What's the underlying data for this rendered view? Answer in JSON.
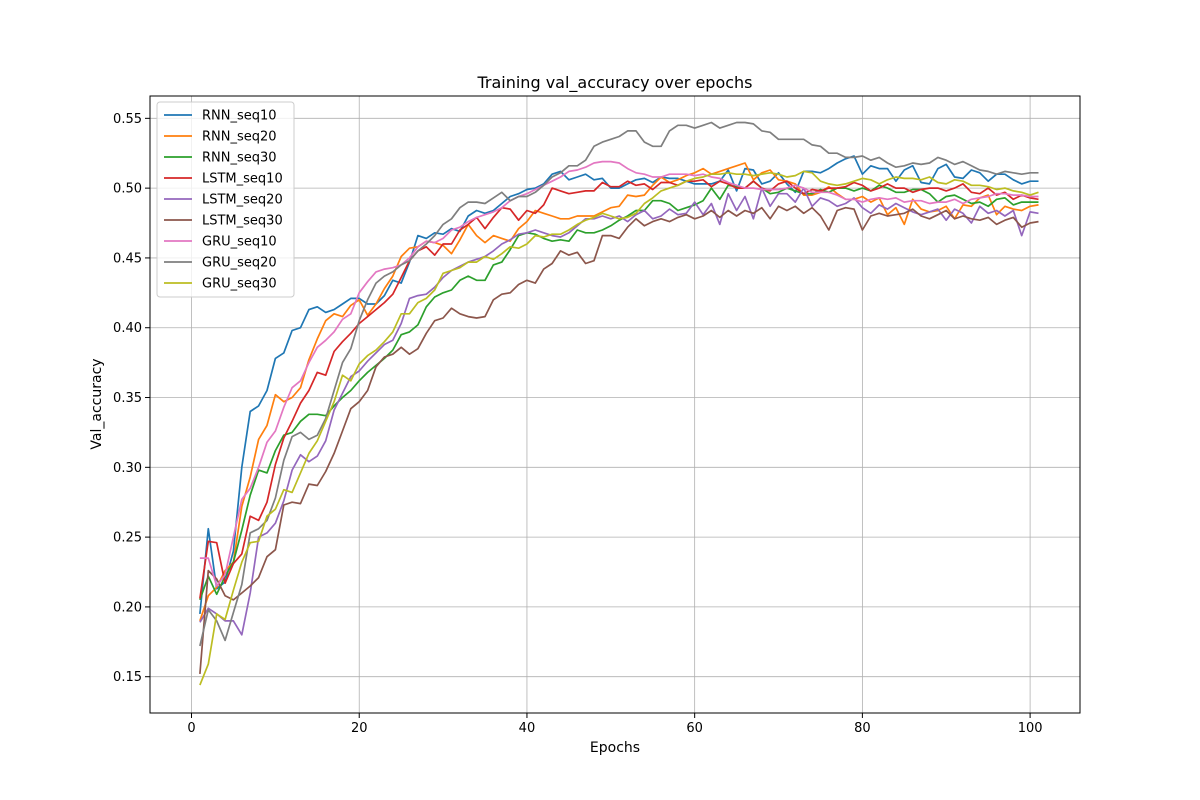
{
  "chart_data": {
    "type": "line",
    "title": "Training val_accuracy over epochs",
    "xlabel": "Epochs",
    "ylabel": "Val_accuracy",
    "xlim": [
      -4.95,
      105.95
    ],
    "ylim": [
      0.124,
      0.566
    ],
    "xticks": [
      0,
      20,
      40,
      60,
      80,
      100
    ],
    "yticks": [
      0.15,
      0.2,
      0.25,
      0.3,
      0.35,
      0.4,
      0.45,
      0.5,
      0.55
    ],
    "grid": true,
    "legend_position": "top-left",
    "x_start": 1,
    "series": [
      {
        "name": "RNN_seq10",
        "color": "#1f77b4",
        "values": [
          0.195,
          0.256,
          0.213,
          0.218,
          0.24,
          0.3,
          0.34,
          0.344,
          0.355,
          0.378,
          0.382,
          0.398,
          0.4,
          0.413,
          0.415,
          0.411,
          0.413,
          0.417,
          0.421,
          0.421,
          0.417,
          0.417,
          0.423,
          0.434,
          0.432,
          0.447,
          0.466,
          0.464,
          0.468,
          0.467,
          0.471,
          0.469,
          0.48,
          0.484,
          0.482,
          0.484,
          0.489,
          0.494,
          0.496,
          0.499,
          0.5,
          0.503,
          0.51,
          0.512,
          0.506,
          0.508,
          0.51,
          0.506,
          0.507,
          0.5,
          0.5,
          0.503,
          0.506,
          0.507,
          0.504,
          0.508,
          0.507,
          0.507,
          0.505,
          0.503,
          0.503,
          0.503,
          0.505,
          0.513,
          0.498,
          0.514,
          0.513,
          0.503,
          0.505,
          0.511,
          0.503,
          0.497,
          0.512,
          0.512,
          0.511,
          0.514,
          0.518,
          0.521,
          0.523,
          0.51,
          0.516,
          0.514,
          0.514,
          0.505,
          0.513,
          0.516,
          0.504,
          0.503,
          0.514,
          0.517,
          0.508,
          0.507,
          0.513,
          0.511,
          0.505,
          0.51,
          0.51,
          0.506,
          0.503,
          0.505,
          0.505
        ]
      },
      {
        "name": "RNN_seq20",
        "color": "#ff7f0e",
        "values": [
          0.19,
          0.208,
          0.214,
          0.226,
          0.232,
          0.272,
          0.293,
          0.32,
          0.33,
          0.352,
          0.347,
          0.35,
          0.357,
          0.377,
          0.392,
          0.405,
          0.41,
          0.408,
          0.416,
          0.42,
          0.409,
          0.417,
          0.428,
          0.437,
          0.451,
          0.457,
          0.458,
          0.462,
          0.461,
          0.459,
          0.453,
          0.463,
          0.474,
          0.466,
          0.461,
          0.466,
          0.464,
          0.462,
          0.471,
          0.476,
          0.484,
          0.482,
          0.48,
          0.478,
          0.478,
          0.48,
          0.48,
          0.48,
          0.483,
          0.486,
          0.487,
          0.495,
          0.494,
          0.495,
          0.502,
          0.508,
          0.504,
          0.506,
          0.509,
          0.511,
          0.514,
          0.51,
          0.512,
          0.514,
          0.516,
          0.518,
          0.506,
          0.511,
          0.513,
          0.506,
          0.505,
          0.503,
          0.495,
          0.495,
          0.497,
          0.501,
          0.496,
          0.492,
          0.492,
          0.494,
          0.49,
          0.493,
          0.481,
          0.486,
          0.474,
          0.492,
          0.485,
          0.483,
          0.484,
          0.487,
          0.478,
          0.488,
          0.487,
          0.493,
          0.495,
          0.481,
          0.487,
          0.485,
          0.484,
          0.487,
          0.488
        ]
      },
      {
        "name": "RNN_seq30",
        "color": "#2ca02c",
        "values": [
          0.205,
          0.222,
          0.209,
          0.222,
          0.232,
          0.255,
          0.28,
          0.298,
          0.296,
          0.312,
          0.323,
          0.325,
          0.333,
          0.338,
          0.338,
          0.337,
          0.344,
          0.35,
          0.355,
          0.362,
          0.368,
          0.373,
          0.378,
          0.384,
          0.395,
          0.397,
          0.402,
          0.415,
          0.422,
          0.425,
          0.427,
          0.434,
          0.437,
          0.434,
          0.434,
          0.445,
          0.447,
          0.456,
          0.466,
          0.468,
          0.467,
          0.464,
          0.462,
          0.463,
          0.462,
          0.47,
          0.468,
          0.468,
          0.47,
          0.473,
          0.477,
          0.48,
          0.484,
          0.484,
          0.491,
          0.491,
          0.489,
          0.484,
          0.486,
          0.488,
          0.491,
          0.5,
          0.492,
          0.502,
          0.501,
          0.5,
          0.505,
          0.5,
          0.496,
          0.497,
          0.5,
          0.498,
          0.496,
          0.496,
          0.499,
          0.497,
          0.5,
          0.5,
          0.498,
          0.5,
          0.498,
          0.502,
          0.5,
          0.497,
          0.497,
          0.499,
          0.499,
          0.496,
          0.49,
          0.494,
          0.495,
          0.492,
          0.489,
          0.49,
          0.487,
          0.492,
          0.493,
          0.488,
          0.49,
          0.49,
          0.49
        ]
      },
      {
        "name": "LSTM_seq10",
        "color": "#d62728",
        "values": [
          0.206,
          0.247,
          0.246,
          0.217,
          0.231,
          0.238,
          0.265,
          0.262,
          0.275,
          0.302,
          0.321,
          0.333,
          0.346,
          0.355,
          0.368,
          0.366,
          0.383,
          0.39,
          0.396,
          0.403,
          0.408,
          0.413,
          0.418,
          0.424,
          0.436,
          0.448,
          0.455,
          0.458,
          0.452,
          0.46,
          0.46,
          0.47,
          0.474,
          0.479,
          0.471,
          0.479,
          0.486,
          0.485,
          0.477,
          0.484,
          0.482,
          0.488,
          0.5,
          0.498,
          0.496,
          0.497,
          0.498,
          0.498,
          0.504,
          0.501,
          0.501,
          0.505,
          0.502,
          0.503,
          0.499,
          0.504,
          0.504,
          0.502,
          0.505,
          0.505,
          0.506,
          0.501,
          0.505,
          0.503,
          0.5,
          0.5,
          0.505,
          0.5,
          0.498,
          0.503,
          0.505,
          0.5,
          0.496,
          0.499,
          0.498,
          0.5,
          0.5,
          0.501,
          0.504,
          0.502,
          0.498,
          0.5,
          0.503,
          0.5,
          0.5,
          0.497,
          0.499,
          0.5,
          0.5,
          0.498,
          0.5,
          0.503,
          0.497,
          0.496,
          0.5,
          0.495,
          0.497,
          0.492,
          0.495,
          0.493,
          0.492
        ]
      },
      {
        "name": "LSTM_seq20",
        "color": "#9467bd",
        "values": [
          0.189,
          0.199,
          0.195,
          0.19,
          0.19,
          0.18,
          0.21,
          0.25,
          0.253,
          0.26,
          0.276,
          0.298,
          0.309,
          0.304,
          0.308,
          0.319,
          0.341,
          0.353,
          0.365,
          0.369,
          0.376,
          0.382,
          0.388,
          0.391,
          0.403,
          0.421,
          0.423,
          0.424,
          0.429,
          0.436,
          0.441,
          0.444,
          0.447,
          0.449,
          0.451,
          0.455,
          0.46,
          0.463,
          0.467,
          0.468,
          0.47,
          0.468,
          0.466,
          0.465,
          0.468,
          0.473,
          0.478,
          0.478,
          0.48,
          0.478,
          0.48,
          0.476,
          0.481,
          0.484,
          0.478,
          0.48,
          0.485,
          0.481,
          0.482,
          0.49,
          0.481,
          0.489,
          0.474,
          0.496,
          0.484,
          0.494,
          0.478,
          0.5,
          0.487,
          0.496,
          0.496,
          0.49,
          0.5,
          0.487,
          0.493,
          0.491,
          0.487,
          0.489,
          0.493,
          0.486,
          0.482,
          0.488,
          0.485,
          0.489,
          0.486,
          0.483,
          0.481,
          0.483,
          0.485,
          0.477,
          0.485,
          0.482,
          0.475,
          0.487,
          0.482,
          0.484,
          0.48,
          0.484,
          0.466,
          0.483,
          0.482
        ]
      },
      {
        "name": "LSTM_seq30",
        "color": "#8c564b",
        "values": [
          0.152,
          0.226,
          0.22,
          0.208,
          0.205,
          0.21,
          0.215,
          0.221,
          0.236,
          0.241,
          0.273,
          0.275,
          0.274,
          0.288,
          0.287,
          0.297,
          0.31,
          0.326,
          0.342,
          0.347,
          0.355,
          0.372,
          0.379,
          0.381,
          0.386,
          0.381,
          0.385,
          0.396,
          0.405,
          0.407,
          0.414,
          0.41,
          0.408,
          0.407,
          0.408,
          0.42,
          0.424,
          0.425,
          0.431,
          0.434,
          0.432,
          0.442,
          0.446,
          0.455,
          0.452,
          0.454,
          0.446,
          0.448,
          0.466,
          0.466,
          0.464,
          0.472,
          0.478,
          0.473,
          0.476,
          0.478,
          0.476,
          0.479,
          0.481,
          0.478,
          0.48,
          0.484,
          0.479,
          0.484,
          0.48,
          0.484,
          0.482,
          0.486,
          0.478,
          0.487,
          0.484,
          0.487,
          0.482,
          0.486,
          0.48,
          0.47,
          0.484,
          0.486,
          0.485,
          0.47,
          0.48,
          0.482,
          0.48,
          0.481,
          0.482,
          0.485,
          0.48,
          0.478,
          0.481,
          0.484,
          0.478,
          0.48,
          0.478,
          0.477,
          0.479,
          0.474,
          0.477,
          0.479,
          0.472,
          0.475,
          0.476
        ]
      },
      {
        "name": "GRU_seq10",
        "color": "#e377c2",
        "values": [
          0.235,
          0.235,
          0.215,
          0.223,
          0.25,
          0.277,
          0.285,
          0.3,
          0.318,
          0.326,
          0.343,
          0.357,
          0.362,
          0.375,
          0.386,
          0.391,
          0.397,
          0.406,
          0.41,
          0.425,
          0.433,
          0.44,
          0.442,
          0.443,
          0.445,
          0.45,
          0.458,
          0.462,
          0.461,
          0.464,
          0.47,
          0.472,
          0.476,
          0.479,
          0.481,
          0.483,
          0.486,
          0.491,
          0.494,
          0.496,
          0.499,
          0.502,
          0.505,
          0.508,
          0.512,
          0.513,
          0.515,
          0.518,
          0.519,
          0.519,
          0.518,
          0.514,
          0.511,
          0.51,
          0.508,
          0.508,
          0.51,
          0.51,
          0.51,
          0.509,
          0.51,
          0.508,
          0.507,
          0.504,
          0.502,
          0.5,
          0.5,
          0.499,
          0.499,
          0.499,
          0.5,
          0.502,
          0.5,
          0.497,
          0.497,
          0.497,
          0.495,
          0.492,
          0.492,
          0.49,
          0.492,
          0.493,
          0.492,
          0.493,
          0.49,
          0.491,
          0.491,
          0.489,
          0.49,
          0.49,
          0.492,
          0.489,
          0.492,
          0.493,
          0.494,
          0.496,
          0.496,
          0.495,
          0.495,
          0.494,
          0.494
        ]
      },
      {
        "name": "GRU_seq20",
        "color": "#7f7f7f",
        "values": [
          0.172,
          0.198,
          0.19,
          0.176,
          0.196,
          0.216,
          0.253,
          0.256,
          0.262,
          0.278,
          0.305,
          0.322,
          0.325,
          0.32,
          0.323,
          0.335,
          0.355,
          0.375,
          0.385,
          0.405,
          0.42,
          0.432,
          0.437,
          0.44,
          0.445,
          0.448,
          0.455,
          0.46,
          0.466,
          0.474,
          0.478,
          0.486,
          0.49,
          0.49,
          0.489,
          0.493,
          0.497,
          0.491,
          0.494,
          0.494,
          0.497,
          0.502,
          0.508,
          0.511,
          0.516,
          0.516,
          0.52,
          0.53,
          0.533,
          0.535,
          0.537,
          0.541,
          0.541,
          0.533,
          0.53,
          0.53,
          0.541,
          0.545,
          0.545,
          0.543,
          0.545,
          0.547,
          0.543,
          0.545,
          0.547,
          0.547,
          0.546,
          0.541,
          0.54,
          0.535,
          0.535,
          0.535,
          0.535,
          0.531,
          0.53,
          0.525,
          0.525,
          0.522,
          0.522,
          0.523,
          0.52,
          0.522,
          0.518,
          0.515,
          0.516,
          0.518,
          0.517,
          0.518,
          0.522,
          0.52,
          0.517,
          0.519,
          0.516,
          0.513,
          0.512,
          0.51,
          0.512,
          0.511,
          0.51,
          0.511,
          0.511
        ]
      },
      {
        "name": "GRU_seq30",
        "color": "#bcbd22",
        "values": [
          0.144,
          0.159,
          0.195,
          0.191,
          0.212,
          0.232,
          0.246,
          0.247,
          0.265,
          0.27,
          0.284,
          0.282,
          0.296,
          0.31,
          0.319,
          0.333,
          0.347,
          0.366,
          0.362,
          0.374,
          0.38,
          0.384,
          0.39,
          0.397,
          0.41,
          0.41,
          0.418,
          0.421,
          0.427,
          0.439,
          0.441,
          0.443,
          0.447,
          0.447,
          0.451,
          0.449,
          0.453,
          0.458,
          0.457,
          0.46,
          0.466,
          0.465,
          0.467,
          0.467,
          0.47,
          0.474,
          0.477,
          0.479,
          0.482,
          0.48,
          0.478,
          0.479,
          0.482,
          0.489,
          0.493,
          0.498,
          0.5,
          0.502,
          0.505,
          0.507,
          0.508,
          0.51,
          0.51,
          0.511,
          0.51,
          0.51,
          0.509,
          0.51,
          0.511,
          0.51,
          0.508,
          0.509,
          0.512,
          0.511,
          0.505,
          0.503,
          0.502,
          0.503,
          0.505,
          0.507,
          0.506,
          0.503,
          0.506,
          0.508,
          0.507,
          0.507,
          0.506,
          0.508,
          0.504,
          0.503,
          0.506,
          0.505,
          0.502,
          0.502,
          0.501,
          0.499,
          0.5,
          0.498,
          0.497,
          0.495,
          0.497
        ]
      }
    ]
  }
}
